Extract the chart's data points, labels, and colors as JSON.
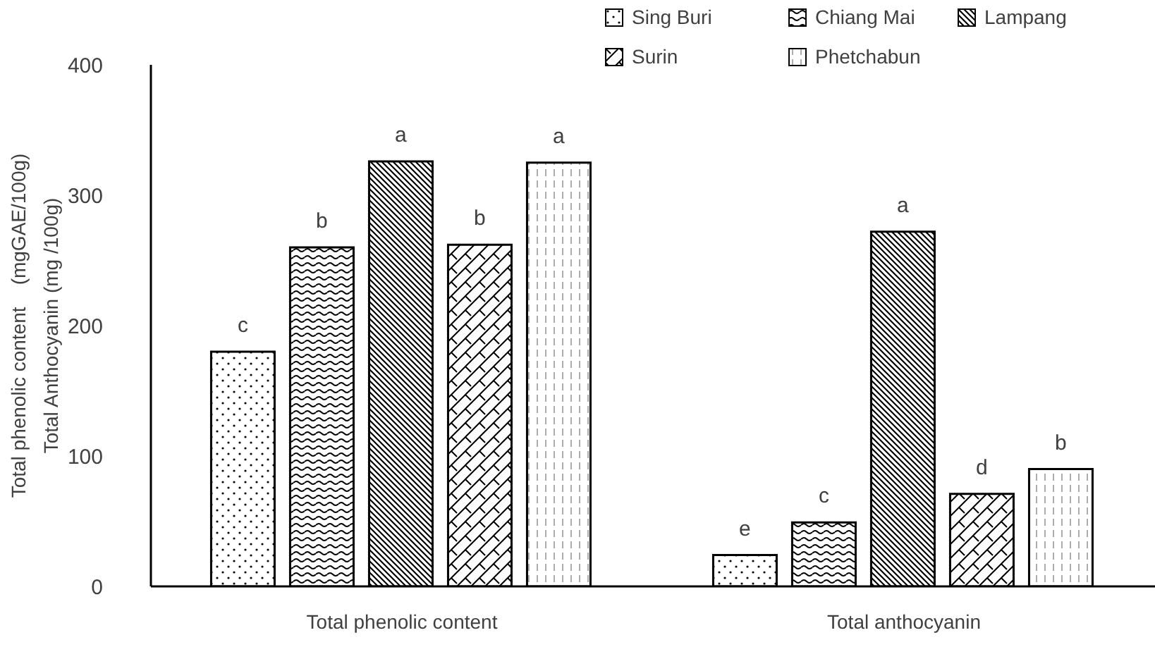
{
  "chart_data": {
    "type": "bar",
    "ylabel": "Total phenolic content    (mgGAE/100g)\nTotal Anthocyanin (mg /100g)",
    "categories": [
      "Total phenolic content",
      "Total anthocyanin"
    ],
    "series": [
      {
        "name": "Sing Buri",
        "color": "#000000",
        "values": [
          180,
          24
        ],
        "value_labels": [
          "c",
          "e"
        ]
      },
      {
        "name": "Chiang Mai",
        "color": "#000000",
        "values": [
          260,
          49
        ],
        "value_labels": [
          "b",
          "c"
        ]
      },
      {
        "name": "Lampang",
        "color": "#000000",
        "values": [
          326,
          272
        ],
        "value_labels": [
          "a",
          "a"
        ]
      },
      {
        "name": "Surin",
        "color": "#000000",
        "values": [
          262,
          71
        ],
        "value_labels": [
          "b",
          "d"
        ]
      },
      {
        "name": "Phetchabun",
        "color": "#000000",
        "values": [
          325,
          90
        ],
        "value_labels": [
          "a",
          "b"
        ]
      }
    ],
    "ylim": [
      0,
      400
    ],
    "yticks": [
      0,
      100,
      200,
      300,
      400
    ],
    "grid": false,
    "legend": "top right"
  }
}
